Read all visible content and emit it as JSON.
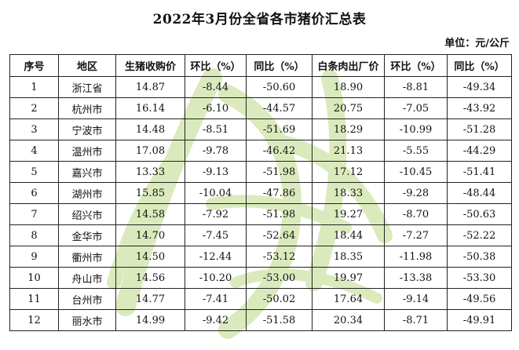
{
  "title": "2022年3月份全省各市猪价汇总表",
  "unit": "单位：元/公斤",
  "table": {
    "headers": [
      "序号",
      "地区",
      "生猪收购价",
      "环比（%）",
      "同比（%）",
      "白条肉出厂价",
      "环比（%）",
      "同比（%）"
    ],
    "rows": [
      [
        "1",
        "浙江省",
        "14.87",
        "-8.44",
        "-50.60",
        "18.90",
        "-8.81",
        "-49.34"
      ],
      [
        "2",
        "杭州市",
        "16.14",
        "-6.10",
        "-44.57",
        "20.75",
        "-7.05",
        "-43.92"
      ],
      [
        "3",
        "宁波市",
        "14.48",
        "-8.51",
        "-51.69",
        "18.29",
        "-10.99",
        "-51.28"
      ],
      [
        "4",
        "温州市",
        "17.08",
        "-9.78",
        "-46.42",
        "21.13",
        "-5.55",
        "-44.29"
      ],
      [
        "5",
        "嘉兴市",
        "13.33",
        "-9.13",
        "-51.98",
        "17.12",
        "-10.45",
        "-51.41"
      ],
      [
        "6",
        "湖州市",
        "15.85",
        "-10.04",
        "-47.86",
        "18.33",
        "-9.28",
        "-48.44"
      ],
      [
        "7",
        "绍兴市",
        "14.58",
        "-7.92",
        "-51.98",
        "19.27",
        "-8.70",
        "-50.63"
      ],
      [
        "8",
        "金华市",
        "14.70",
        "-7.45",
        "-52.64",
        "18.44",
        "-7.27",
        "-52.22"
      ],
      [
        "9",
        "衢州市",
        "14.50",
        "-12.44",
        "-53.12",
        "18.35",
        "-11.98",
        "-50.38"
      ],
      [
        "10",
        "舟山市",
        "14.56",
        "-10.20",
        "-53.00",
        "19.97",
        "-13.38",
        "-53.30"
      ],
      [
        "11",
        "台州市",
        "14.77",
        "-7.41",
        "-50.02",
        "17.64",
        "-9.14",
        "-49.56"
      ],
      [
        "12",
        "丽水市",
        "14.99",
        "-9.42",
        "-51.58",
        "20.34",
        "-8.71",
        "-49.91"
      ]
    ]
  },
  "watermark": {
    "color": "#cfe3a6"
  }
}
